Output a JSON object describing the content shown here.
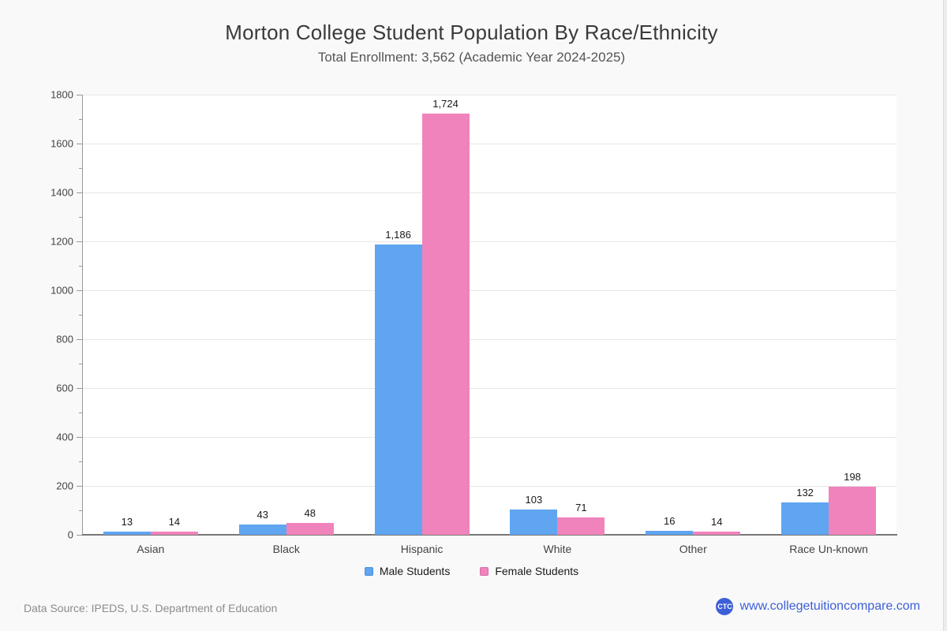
{
  "chart": {
    "title": "Morton College Student Population By Race/Ethnicity",
    "subtitle": "Total Enrollment: 3,562 (Academic Year 2024-2025)"
  },
  "chart_data": {
    "type": "bar",
    "categories": [
      "Asian",
      "Black",
      "Hispanic",
      "White",
      "Other",
      "Race Un-known"
    ],
    "series": [
      {
        "name": "Male Students",
        "color": "#5FA5F0",
        "values": [
          13,
          43,
          1186,
          103,
          16,
          132
        ]
      },
      {
        "name": "Female Students",
        "color": "#F083BC",
        "values": [
          14,
          48,
          1724,
          71,
          14,
          198
        ]
      }
    ],
    "ylim": [
      0,
      1800
    ],
    "tick_interval": 200,
    "minor_tick_interval": 100,
    "grid": "horizontal-major-only",
    "legend_position": "bottom",
    "value_labels": true,
    "value_label_format": "thousands-comma",
    "y_tick_labels": [
      "0",
      "200",
      "400",
      "600",
      "800",
      "1000",
      "1200",
      "1400",
      "1600",
      "1800"
    ]
  },
  "footer": {
    "data_source": "Data Source: IPEDS, U.S. Department of Education",
    "website": "www.collegetuitioncompare.com",
    "logo_text": "CTC"
  },
  "colors": {
    "male_bar": "#5FA5F0",
    "female_bar": "#F083BC",
    "brand_blue": "#3D5FD8",
    "grid": "#e7e7e7",
    "page_bg": "#f9f9f9",
    "plot_bg": "#ffffff"
  }
}
